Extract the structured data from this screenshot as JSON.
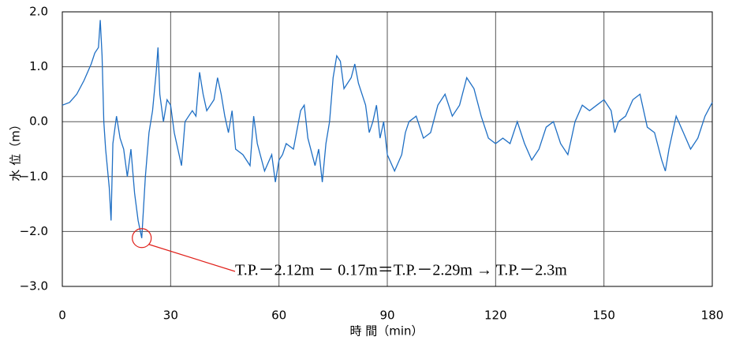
{
  "chart_data": {
    "type": "line",
    "x_label": "時 間（min）",
    "y_label": "水 位（m）",
    "x": [
      0,
      2,
      4,
      6,
      8,
      9,
      10,
      10.5,
      11,
      11.5,
      12,
      13,
      13.5,
      14,
      15,
      16,
      17,
      18,
      19,
      20,
      21,
      22,
      23,
      24,
      25,
      26,
      26.5,
      27,
      28,
      29,
      30,
      31,
      32,
      33,
      34,
      35,
      36,
      37,
      38,
      39,
      40,
      42,
      43,
      44,
      45,
      46,
      47,
      48,
      50,
      52,
      53,
      54,
      56,
      58,
      59,
      60,
      61,
      62,
      64,
      66,
      67,
      68,
      70,
      71,
      72,
      73,
      74,
      75,
      76,
      77,
      78,
      80,
      81,
      82,
      84,
      85,
      86,
      87,
      88,
      89,
      90,
      92,
      94,
      95,
      96,
      98,
      100,
      102,
      104,
      106,
      108,
      110,
      112,
      114,
      116,
      118,
      120,
      122,
      124,
      126,
      128,
      130,
      132,
      134,
      136,
      138,
      140,
      141,
      142,
      144,
      146,
      148,
      150,
      152,
      153,
      154,
      156,
      158,
      160,
      162,
      164,
      166,
      167,
      168,
      170,
      172,
      174,
      176,
      178,
      180
    ],
    "series": [
      {
        "name": "水位",
        "color": "#1f6fc4",
        "values": [
          0.3,
          0.35,
          0.5,
          0.75,
          1.05,
          1.25,
          1.35,
          1.85,
          1.2,
          0.0,
          -0.5,
          -1.2,
          -1.8,
          -0.4,
          0.1,
          -0.3,
          -0.5,
          -1.0,
          -0.5,
          -1.3,
          -1.8,
          -2.12,
          -1.0,
          -0.2,
          0.2,
          0.9,
          1.35,
          0.5,
          0.0,
          0.4,
          0.3,
          -0.2,
          -0.5,
          -0.8,
          0.0,
          0.1,
          0.2,
          0.1,
          0.9,
          0.5,
          0.2,
          0.4,
          0.8,
          0.5,
          0.1,
          -0.2,
          0.2,
          -0.5,
          -0.6,
          -0.8,
          0.1,
          -0.4,
          -0.9,
          -0.6,
          -1.1,
          -0.7,
          -0.6,
          -0.4,
          -0.5,
          0.2,
          0.3,
          -0.3,
          -0.8,
          -0.5,
          -1.1,
          -0.4,
          0.0,
          0.8,
          1.2,
          1.1,
          0.6,
          0.8,
          1.05,
          0.7,
          0.3,
          -0.2,
          0.0,
          0.3,
          -0.3,
          0.0,
          -0.6,
          -0.9,
          -0.6,
          -0.2,
          0.0,
          0.1,
          -0.3,
          -0.2,
          0.3,
          0.5,
          0.1,
          0.3,
          0.8,
          0.6,
          0.1,
          -0.3,
          -0.4,
          -0.3,
          -0.4,
          0.0,
          -0.4,
          -0.7,
          -0.5,
          -0.1,
          0.0,
          -0.4,
          -0.6,
          -0.3,
          0.0,
          0.3,
          0.2,
          0.3,
          0.4,
          0.2,
          -0.2,
          0.0,
          0.1,
          0.4,
          0.5,
          -0.1,
          -0.2,
          -0.7,
          -0.9,
          -0.5,
          0.1,
          -0.2,
          -0.5,
          -0.3,
          0.1,
          0.35
        ]
      }
    ],
    "xlim": [
      0,
      180
    ],
    "xticks": [
      0,
      30,
      60,
      90,
      120,
      150,
      180
    ],
    "ylim": [
      -3,
      2
    ],
    "yticks": [
      {
        "value": -3,
        "label": "−3.0"
      },
      {
        "value": -2,
        "label": "−2.0"
      },
      {
        "value": -1,
        "label": "−1.0"
      },
      {
        "value": 0,
        "label": "0.0"
      },
      {
        "value": 1,
        "label": "1.0"
      },
      {
        "value": 2,
        "label": "2.0"
      }
    ],
    "grid": true,
    "annotation": {
      "text": "T.P.－2.12m － 0.17m＝T.P.－2.29m → T.P.－2.3m",
      "x": 22,
      "y": -2.12,
      "color": "#e0201a"
    }
  }
}
